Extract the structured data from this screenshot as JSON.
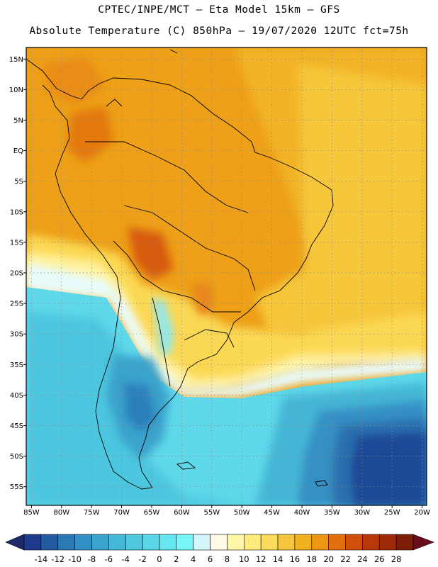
{
  "header": {
    "line1": "CPTEC/INPE/MCT –  Eta Model 15km – GFS",
    "line2": "Absolute Temperature (C) 850hPa – 19/07/2020 12UTC fct=75h"
  },
  "map": {
    "lat_labels": [
      "15N",
      "10N",
      "5N",
      "EQ",
      "5S",
      "10S",
      "15S",
      "20S",
      "25S",
      "30S",
      "35S",
      "40S",
      "45S",
      "50S",
      "55S"
    ],
    "lon_labels": [
      "85W",
      "80W",
      "75W",
      "70W",
      "65W",
      "60W",
      "55W",
      "50W",
      "45W",
      "40W",
      "35W",
      "30W",
      "25W",
      "20W"
    ],
    "gridlines": true
  },
  "colorbar": {
    "labels": [
      "-14",
      "-12",
      "-10",
      "-8",
      "-6",
      "-4",
      "-2",
      "0",
      "2",
      "4",
      "6",
      "8",
      "10",
      "12",
      "14",
      "16",
      "18",
      "20",
      "22",
      "24",
      "26",
      "28"
    ],
    "colors": [
      "#1e3a8c",
      "#245aa0",
      "#2a78b4",
      "#3390c4",
      "#3aa4cc",
      "#44b8d8",
      "#4fc8e0",
      "#5ad6e8",
      "#66e6f0",
      "#78f6fa",
      "#d2f6fa",
      "#fffbe6",
      "#fff6a8",
      "#fdec7c",
      "#fbdb5c",
      "#f7c63c",
      "#f0b020",
      "#eb9714",
      "#e3700f",
      "#d0500c",
      "#b8380b",
      "#9e2a0a",
      "#7c1e08"
    ],
    "left_arrow_color": "#1e2a6a",
    "right_arrow_color": "#6a0c1a"
  }
}
